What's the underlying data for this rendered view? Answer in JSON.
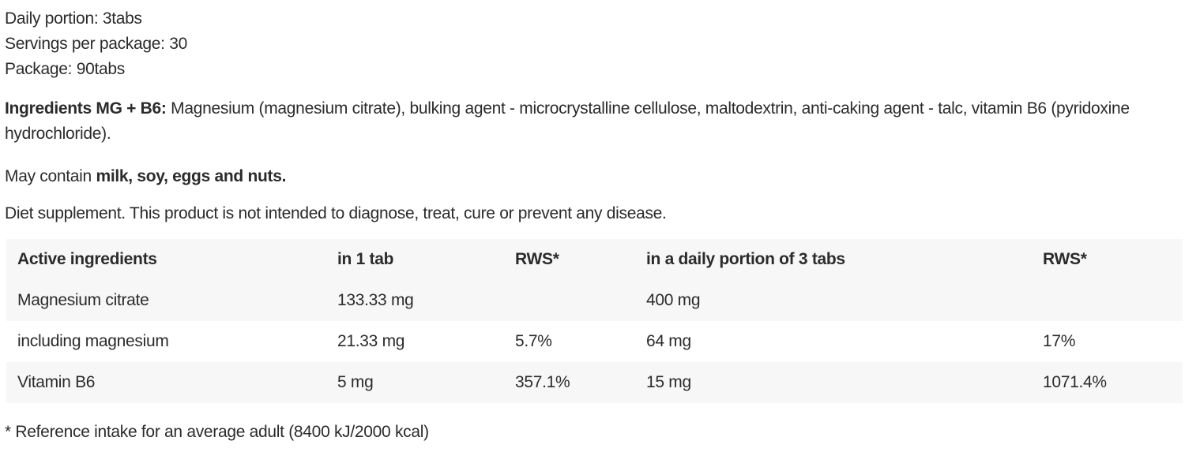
{
  "page": {
    "background_color": "#ffffff",
    "text_color": "#2b2b2b",
    "table_stripe_color": "#f7f7f7"
  },
  "summary": {
    "lines": [
      "Daily portion: 3tabs",
      "Servings per package: 30",
      "Package: 90tabs"
    ]
  },
  "paragraphs": {
    "ingredients": {
      "segments": [
        {
          "text": "Ingredients MG + B6: ",
          "bold": true
        },
        {
          "text": "Magnesium (magnesium citrate), bulking agent - microcrystalline cellulose, maltodextrin, anti-caking agent - talc, vitamin B6 (pyridoxine hydrochloride).",
          "bold": false
        }
      ]
    },
    "may_contain": {
      "segments": [
        {
          "text": "May contain ",
          "bold": false
        },
        {
          "text": "milk, soy, eggs and nuts.",
          "bold": true
        }
      ]
    },
    "disclaimer": {
      "segments": [
        {
          "text": "Diet supplement. This product is not intended to diagnose, treat, cure or prevent any disease.",
          "bold": false
        }
      ]
    }
  },
  "table": {
    "headers": [
      "Active ingredients",
      "in 1 tab",
      "RWS*",
      "in a daily portion of 3 tabs",
      "RWS*"
    ],
    "rows": [
      {
        "cells": [
          "Magnesium citrate",
          "133.33 mg",
          "",
          "400 mg",
          ""
        ]
      },
      {
        "cells": [
          "including magnesium",
          "21.33 mg",
          "5.7%",
          "64 mg",
          "17%"
        ]
      },
      {
        "cells": [
          "Vitamin B6",
          "5 mg",
          "357.1%",
          "15 mg",
          "1071.4%"
        ]
      }
    ]
  },
  "footnote": "* Reference intake for an average adult (8400 kJ/2000 kcal)"
}
